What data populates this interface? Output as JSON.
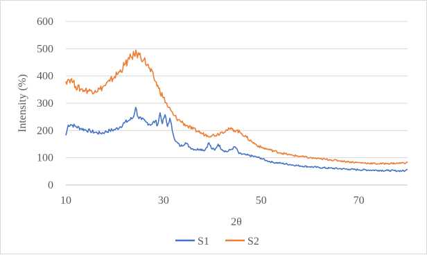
{
  "chart_data": {
    "type": "line",
    "title": "",
    "xlabel": "2θ",
    "ylabel": "Intensity (%)",
    "xlim": [
      10,
      80
    ],
    "ylim": [
      0,
      600
    ],
    "x_ticks": [
      10,
      30,
      50,
      70
    ],
    "y_ticks": [
      0,
      100,
      200,
      300,
      400,
      500,
      600
    ],
    "x_tick_labels": [
      "10",
      "30",
      "50",
      "70"
    ],
    "y_tick_labels": [
      "0",
      "100",
      "200",
      "300",
      "400",
      "500",
      "600"
    ],
    "grid": "horizontal",
    "legend_position": "bottom",
    "series": [
      {
        "name": "S1",
        "color": "#4472c4",
        "points": [
          [
            10,
            182
          ],
          [
            10.5,
            220
          ],
          [
            11,
            222
          ],
          [
            12,
            215
          ],
          [
            13,
            208
          ],
          [
            14,
            202
          ],
          [
            15,
            198
          ],
          [
            16,
            193
          ],
          [
            17,
            190
          ],
          [
            18,
            194
          ],
          [
            19,
            200
          ],
          [
            20,
            203
          ],
          [
            21,
            212
          ],
          [
            22,
            228
          ],
          [
            23,
            238
          ],
          [
            23.8,
            248
          ],
          [
            24.3,
            285
          ],
          [
            24.8,
            250
          ],
          [
            25.5,
            240
          ],
          [
            26.5,
            230
          ],
          [
            27.5,
            222
          ],
          [
            28.3,
            235
          ],
          [
            28.8,
            220
          ],
          [
            29.3,
            265
          ],
          [
            29.8,
            225
          ],
          [
            30.3,
            258
          ],
          [
            30.8,
            215
          ],
          [
            31.3,
            245
          ],
          [
            31.8,
            200
          ],
          [
            32.5,
            160
          ],
          [
            33.5,
            142
          ],
          [
            34.5,
            155
          ],
          [
            35.5,
            137
          ],
          [
            36.5,
            130
          ],
          [
            37.5,
            132
          ],
          [
            38.5,
            128
          ],
          [
            39.3,
            155
          ],
          [
            39.8,
            135
          ],
          [
            40.5,
            128
          ],
          [
            41.2,
            150
          ],
          [
            42,
            130
          ],
          [
            43,
            122
          ],
          [
            44,
            132
          ],
          [
            44.7,
            140
          ],
          [
            45.5,
            115
          ],
          [
            47,
            110
          ],
          [
            49,
            103
          ],
          [
            50,
            98
          ],
          [
            51,
            90
          ],
          [
            52.5,
            83
          ],
          [
            54,
            80
          ],
          [
            56,
            75
          ],
          [
            58,
            70
          ],
          [
            60,
            67
          ],
          [
            62,
            64
          ],
          [
            64,
            62
          ],
          [
            66,
            60
          ],
          [
            68,
            58
          ],
          [
            70,
            56
          ],
          [
            72,
            55
          ],
          [
            74,
            54
          ],
          [
            76,
            53
          ],
          [
            78,
            52
          ],
          [
            79.5,
            52
          ],
          [
            80,
            57
          ]
        ]
      },
      {
        "name": "S2",
        "color": "#ed7d31",
        "points": [
          [
            10,
            380
          ],
          [
            10.5,
            388
          ],
          [
            11,
            386
          ],
          [
            11.5,
            378
          ],
          [
            12,
            362
          ],
          [
            13,
            352
          ],
          [
            14,
            348
          ],
          [
            15,
            345
          ],
          [
            16,
            347
          ],
          [
            17,
            352
          ],
          [
            18,
            365
          ],
          [
            19,
            380
          ],
          [
            20,
            398
          ],
          [
            21,
            415
          ],
          [
            22,
            440
          ],
          [
            23,
            462
          ],
          [
            24,
            478
          ],
          [
            24.5,
            482
          ],
          [
            25,
            478
          ],
          [
            26,
            460
          ],
          [
            27,
            430
          ],
          [
            28,
            395
          ],
          [
            29,
            355
          ],
          [
            30,
            320
          ],
          [
            31,
            285
          ],
          [
            32,
            258
          ],
          [
            33,
            240
          ],
          [
            34,
            228
          ],
          [
            35,
            215
          ],
          [
            36,
            205
          ],
          [
            37,
            198
          ],
          [
            38,
            188
          ],
          [
            39,
            182
          ],
          [
            40,
            182
          ],
          [
            41,
            185
          ],
          [
            42,
            195
          ],
          [
            43,
            202
          ],
          [
            44,
            205
          ],
          [
            45,
            200
          ],
          [
            46,
            190
          ],
          [
            47,
            175
          ],
          [
            48,
            160
          ],
          [
            49,
            148
          ],
          [
            50,
            138
          ],
          [
            52,
            128
          ],
          [
            54,
            118
          ],
          [
            56,
            110
          ],
          [
            58,
            105
          ],
          [
            60,
            100
          ],
          [
            62,
            96
          ],
          [
            64,
            93
          ],
          [
            66,
            89
          ],
          [
            68,
            85
          ],
          [
            70,
            82
          ],
          [
            72,
            80
          ],
          [
            74,
            78
          ],
          [
            76,
            79
          ],
          [
            78,
            80
          ],
          [
            80,
            82
          ]
        ]
      }
    ]
  }
}
